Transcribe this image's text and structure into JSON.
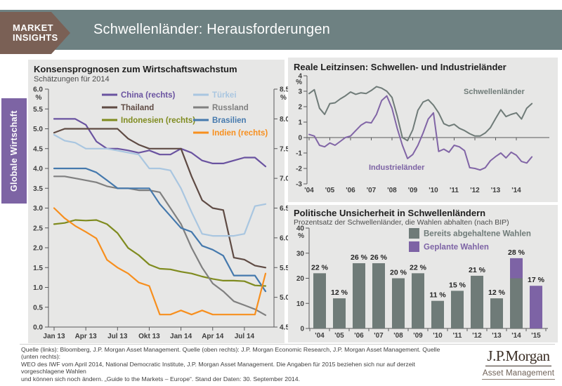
{
  "header": {
    "brand_line1": "MARKET",
    "brand_line2": "INSIGHTS",
    "title": "Schwellenländer: Herausforderungen"
  },
  "sidebar": {
    "label": "Globale Wirtschaft"
  },
  "colors": {
    "header_teal": "#6e8182",
    "badge_brown": "#7a6055",
    "tab_purple": "#7d64a4",
    "panel_gray": "#e7e7e6",
    "bar_gray": "#6f7b78",
    "bar_purple": "#7d63a5"
  },
  "chart_data": [
    {
      "id": "growth_forecasts",
      "type": "line",
      "title": "Konsensprognosen zum Wirtschaftswachstum",
      "subtitle": "Schätzungen für 2014",
      "n_points": 21,
      "x_tick_labels": [
        "Jan 13",
        "Apr 13",
        "Jul 13",
        "Okt 13",
        "Jan 14",
        "Apr 14",
        "Jul 14"
      ],
      "x_tick_positions": [
        0,
        3,
        6,
        9,
        12,
        15,
        18
      ],
      "left_axis": {
        "label": "%",
        "min": 0.0,
        "max": 6.0,
        "step": 0.5
      },
      "right_axis": {
        "label": "%",
        "min": 4.5,
        "max": 8.5,
        "step": 0.5
      },
      "series": [
        {
          "name": "China (rechts)",
          "axis": "right",
          "color": "#6a53a0",
          "legend_col": 1,
          "values": [
            8.0,
            8.0,
            8.0,
            7.9,
            7.62,
            7.5,
            7.5,
            7.47,
            7.43,
            7.47,
            7.4,
            7.4,
            7.5,
            7.43,
            7.3,
            7.25,
            7.25,
            7.3,
            7.35,
            7.35,
            7.2
          ]
        },
        {
          "name": "Thailand",
          "axis": "left",
          "color": "#5f4b44",
          "legend_col": 1,
          "values": [
            4.9,
            5.0,
            5.0,
            5.0,
            5.0,
            5.0,
            5.0,
            4.75,
            4.6,
            4.5,
            4.5,
            4.5,
            4.5,
            3.8,
            3.2,
            3.0,
            2.95,
            1.75,
            1.7,
            1.55,
            1.5
          ]
        },
        {
          "name": "Indonesien (rechts)",
          "axis": "right",
          "color": "#7f8b1f",
          "legend_col": 1,
          "values": [
            6.23,
            6.25,
            6.3,
            6.29,
            6.3,
            6.23,
            6.08,
            5.83,
            5.71,
            5.55,
            5.48,
            5.47,
            5.43,
            5.4,
            5.35,
            5.31,
            5.28,
            5.28,
            5.27,
            5.2,
            5.19
          ]
        },
        {
          "name": "Türkei",
          "axis": "left",
          "color": "#a9c6e0",
          "legend_col": 2,
          "values": [
            4.85,
            4.7,
            4.65,
            4.5,
            4.5,
            4.5,
            4.45,
            4.4,
            4.35,
            4.0,
            4.0,
            3.95,
            3.5,
            2.9,
            2.35,
            2.3,
            2.3,
            2.3,
            2.35,
            3.05,
            3.1
          ]
        },
        {
          "name": "Russland",
          "axis": "left",
          "color": "#808080",
          "legend_col": 2,
          "values": [
            3.8,
            3.8,
            3.75,
            3.7,
            3.65,
            3.55,
            3.5,
            3.5,
            3.45,
            3.45,
            3.4,
            3.0,
            2.6,
            2.0,
            1.5,
            1.1,
            0.9,
            0.65,
            0.55,
            0.45,
            0.3
          ]
        },
        {
          "name": "Brasilien",
          "axis": "left",
          "color": "#4579ad",
          "legend_col": 2,
          "values": [
            4.0,
            4.0,
            4.0,
            4.0,
            3.9,
            3.7,
            3.5,
            3.5,
            3.5,
            3.5,
            3.1,
            2.8,
            2.5,
            2.4,
            2.05,
            1.95,
            1.8,
            1.3,
            1.3,
            1.3,
            0.9
          ]
        },
        {
          "name": "Indien (rechts)",
          "axis": "right",
          "color": "#f78f1e",
          "legend_col": 2,
          "values": [
            6.5,
            6.33,
            6.2,
            6.1,
            5.99,
            5.63,
            5.5,
            5.4,
            5.25,
            5.19,
            4.71,
            4.71,
            4.78,
            4.71,
            4.78,
            4.71,
            4.71,
            4.71,
            4.71,
            4.71,
            5.4
          ]
        }
      ]
    },
    {
      "id": "real_policy_rates",
      "type": "line",
      "title": "Reale Leitzinsen: Schwellen- und Industrieländer",
      "x_tick_labels": [
        "'04",
        "'05",
        "'06",
        "'07",
        "'08",
        "'09",
        "'10",
        "'11",
        "'12",
        "'13",
        "'14"
      ],
      "y_axis": {
        "label": "%",
        "min": -3,
        "max": 4,
        "step": 1
      },
      "sampling": "quarterly 2004–Q3 2014",
      "series": [
        {
          "name": "Schwellenländer",
          "color": "#6f7b78",
          "values": [
            2.85,
            3.1,
            1.9,
            1.5,
            2.2,
            2.25,
            2.5,
            2.7,
            2.95,
            2.8,
            2.9,
            2.85,
            3.05,
            3.3,
            3.2,
            3.0,
            2.6,
            1.4,
            0.0,
            -0.2,
            0.5,
            1.77,
            2.3,
            2.45,
            2.1,
            1.6,
            0.9,
            0.75,
            0.86,
            0.6,
            0.45,
            0.25,
            0.1,
            0.1,
            0.3,
            0.64,
            1.23,
            1.8,
            1.36,
            1.5,
            1.6,
            1.2,
            1.9,
            2.2
          ]
        },
        {
          "name": "Industrieländer",
          "color": "#8165a6",
          "values": [
            0.2,
            0.1,
            -0.5,
            -0.6,
            -0.35,
            -0.5,
            -0.25,
            0.0,
            0.1,
            0.45,
            0.8,
            1.0,
            0.95,
            1.5,
            2.4,
            2.7,
            1.9,
            0.6,
            -0.5,
            -1.36,
            -1.1,
            -0.5,
            0.3,
            1.2,
            1.6,
            -0.9,
            -0.75,
            -0.95,
            -0.5,
            -0.6,
            -0.85,
            -1.95,
            -2.0,
            -2.1,
            -1.95,
            -1.5,
            -1.23,
            -1.0,
            -1.32,
            -0.95,
            -1.14,
            -1.55,
            -1.65,
            -1.25
          ]
        }
      ],
      "annotations": [
        {
          "text": "Schwellenländer",
          "color": "#6f7b78"
        },
        {
          "text": "Industrieländer",
          "color": "#7d64a4"
        }
      ]
    },
    {
      "id": "political_uncertainty",
      "type": "bar",
      "title": "Politische Unsicherheit in Schwellenländern",
      "subtitle": "Prozentsatz der Schwellenländer, die Wahlen abhalten (nach BIP)",
      "y_axis": {
        "label": "%",
        "min": 0,
        "max": 40,
        "step": 10
      },
      "categories": [
        "'04",
        "'05",
        "'06",
        "'07",
        "'08",
        "'09",
        "'10",
        "'11",
        "'12",
        "'13",
        "'14",
        "'15"
      ],
      "legend": [
        {
          "label": "Bereits abgehaltene Wahlen",
          "color": "#6f7b78"
        },
        {
          "label": "Geplante Wahlen",
          "color": "#7d63a5"
        }
      ],
      "series": [
        {
          "name": "Bereits abgehaltene Wahlen",
          "color": "#6f7b78",
          "values": [
            22,
            12,
            26,
            26,
            20,
            22,
            11,
            15,
            21,
            12,
            20,
            0
          ]
        },
        {
          "name": "Geplante Wahlen",
          "color": "#7d63a5",
          "values": [
            0,
            0,
            0,
            0,
            0,
            0,
            0,
            0,
            0,
            0,
            8,
            17
          ]
        }
      ],
      "bar_labels": [
        "22 %",
        "12 %",
        "26 %",
        "26 %",
        "20 %",
        "22 %",
        "11 %",
        "15 %",
        "21 %",
        "12 %",
        "28 %",
        "17 %"
      ]
    }
  ],
  "footer": {
    "line1": "Quelle (links): Bloomberg, J.P. Morgan Asset Management. Quelle (oben rechts): J.P. Morgan Economic Research, J.P. Morgan Asset Management. Quelle (unten rechts):",
    "line2": "WEO des IWF vom April 2014, National Democratic Institute, J.P. Morgan Asset Management. Die Angaben für 2015 beziehen sich nur auf derzeit vorgeschlagene Wahlen",
    "line3": "und können sich noch ändern. „Guide to the Markets – Europe“. Stand der Daten: 30. September 2014.",
    "logo_wordmark": "J.P.Morgan",
    "logo_subtitle": "Asset Management"
  }
}
